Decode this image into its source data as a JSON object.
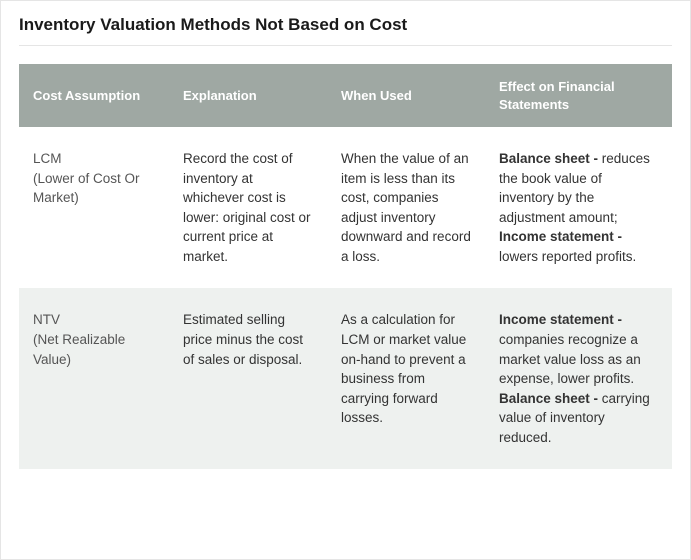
{
  "title": "Inventory Valuation Methods Not Based on Cost",
  "colors": {
    "header_bg": "#9fa8a3",
    "header_text": "#ffffff",
    "row_alt_bg": "#eef1ef",
    "border": "#e5e5e5",
    "text": "#333333"
  },
  "table": {
    "columns": [
      "Cost Assumption",
      "Explanation",
      "When Used",
      "Effect on Financial Statements"
    ],
    "rows": [
      {
        "method_abbr": "LCM",
        "method_full": "(Lower of Cost Or Market)",
        "explanation": "Record the cost of inventory at whichever cost is lower: original cost or current price at market.",
        "when_used": "When the value of an item is less than its cost, companies adjust inventory downward and record a loss.",
        "effect": {
          "parts": [
            {
              "bold": "Balance sheet -",
              "text": " reduces the book value of inventory by the adjustment amount;"
            },
            {
              "br": true
            },
            {
              "bold": "Income statement -",
              "text": " lowers reported profits."
            }
          ]
        }
      },
      {
        "method_abbr": "NTV",
        "method_full": "(Net Realizable Value)",
        "explanation": "Estimated selling price minus the cost of sales or disposal.",
        "when_used": "As a calculation for LCM or market value on-hand to prevent a business from carrying forward losses.",
        "effect": {
          "parts": [
            {
              "bold": "Income statement -",
              "text": " companies recognize a market value loss as an expense, lower profits."
            },
            {
              "br": true
            },
            {
              "bold": "Balance sheet -",
              "text": " carrying value of inventory reduced."
            }
          ]
        }
      }
    ]
  }
}
